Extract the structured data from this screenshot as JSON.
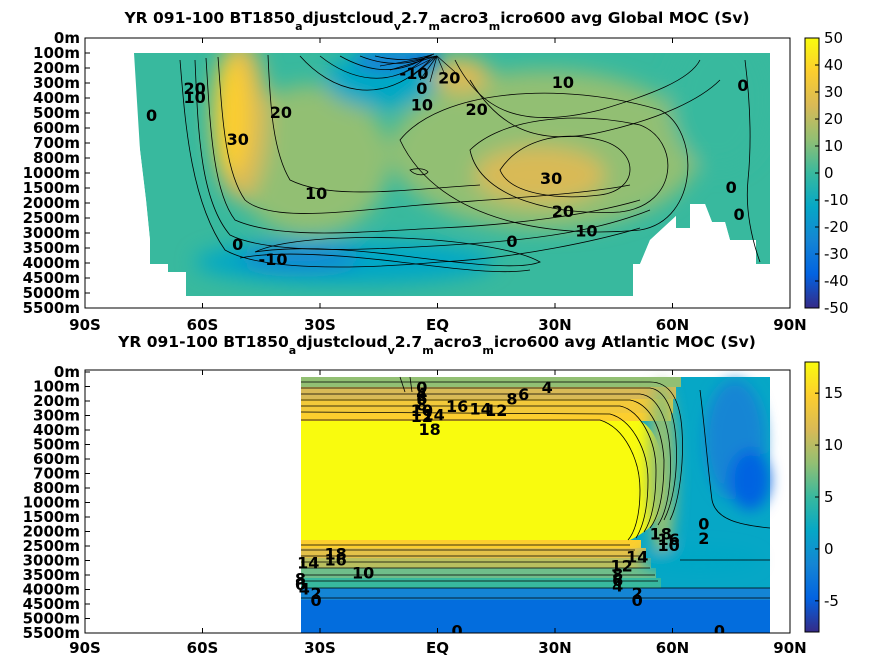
{
  "chart_data": [
    {
      "type": "heatmap",
      "title_main": "YR 091-100 BT1850",
      "title_parts": [
        {
          "text": "a",
          "sub": true
        },
        {
          "text": "djustcloud",
          "sub": false
        },
        {
          "text": "v",
          "sub": true
        },
        {
          "text": "2.7",
          "sub": false
        },
        {
          "text": "m",
          "sub": true
        },
        {
          "text": "acro3",
          "sub": false
        },
        {
          "text": "m",
          "sub": true
        },
        {
          "text": "icro600 avg  Global MOC (Sv)",
          "sub": false
        }
      ],
      "x_ticks": [
        -90,
        -60,
        -30,
        0,
        30,
        60,
        90
      ],
      "x_tick_labels": [
        "90S",
        "60S",
        "30S",
        "EQ",
        "30N",
        "60N",
        "90N"
      ],
      "y_tick_labels": [
        "0m",
        "100m",
        "200m",
        "300m",
        "400m",
        "500m",
        "600m",
        "700m",
        "800m",
        "1000m",
        "1500m",
        "2000m",
        "2500m",
        "3000m",
        "3500m",
        "4000m",
        "4500m",
        "5000m",
        "5500m"
      ],
      "colorbar": {
        "min": -50,
        "max": 50,
        "ticks": [
          50,
          40,
          30,
          20,
          10,
          0,
          -10,
          -20,
          -30,
          -40,
          -50
        ]
      },
      "xlim": [
        -90,
        90
      ],
      "contour_labels": [
        {
          "text": "-10",
          "lat": -6,
          "level": 2.4,
          "value": -10
        },
        {
          "text": "20",
          "lat": -62,
          "level": 3.4,
          "value": 20
        },
        {
          "text": "10",
          "lat": -62,
          "level": 4.0,
          "value": 10
        },
        {
          "text": "0",
          "lat": -73,
          "level": 5.2,
          "value": 0
        },
        {
          "text": "30",
          "lat": -51,
          "level": 6.8,
          "value": 30
        },
        {
          "text": "20",
          "lat": -40,
          "level": 5.0,
          "value": 20
        },
        {
          "text": "20",
          "lat": 3,
          "level": 2.7,
          "value": 20
        },
        {
          "text": "0",
          "lat": -4,
          "level": 3.4,
          "value": 0
        },
        {
          "text": "10",
          "lat": -4,
          "level": 4.5,
          "value": 10
        },
        {
          "text": "20",
          "lat": 10,
          "level": 4.8,
          "value": 20
        },
        {
          "text": "10",
          "lat": 32,
          "level": 3.0,
          "value": 10
        },
        {
          "text": "0",
          "lat": 78,
          "level": 3.2,
          "value": 0
        },
        {
          "text": "30",
          "lat": 29,
          "level": 9.4,
          "value": 30
        },
        {
          "text": "10",
          "lat": -31,
          "level": 10.4,
          "value": 10
        },
        {
          "text": "20",
          "lat": 32,
          "level": 11.6,
          "value": 20
        },
        {
          "text": "10",
          "lat": 38,
          "level": 12.9,
          "value": 10
        },
        {
          "text": "0",
          "lat": 75,
          "level": 10.0,
          "value": 0
        },
        {
          "text": "0",
          "lat": 77,
          "level": 11.8,
          "value": 0
        },
        {
          "text": "0",
          "lat": 19,
          "level": 13.6,
          "value": 0
        },
        {
          "text": "0",
          "lat": -51,
          "level": 13.8,
          "value": 0
        },
        {
          "text": "-10",
          "lat": -42,
          "level": 14.8,
          "value": -10
        }
      ]
    },
    {
      "type": "heatmap",
      "title_main": "YR 091-100 BT1850",
      "title_parts": [
        {
          "text": "a",
          "sub": true
        },
        {
          "text": "djustcloud",
          "sub": false
        },
        {
          "text": "v",
          "sub": true
        },
        {
          "text": "2.7",
          "sub": false
        },
        {
          "text": "m",
          "sub": true
        },
        {
          "text": "acro3",
          "sub": false
        },
        {
          "text": "m",
          "sub": true
        },
        {
          "text": "icro600 avg  Atlantic MOC (Sv)",
          "sub": false
        }
      ],
      "x_ticks": [
        -90,
        -60,
        -30,
        0,
        30,
        60,
        90
      ],
      "x_tick_labels": [
        "90S",
        "60S",
        "30S",
        "EQ",
        "30N",
        "60N",
        "90N"
      ],
      "y_tick_labels": [
        "0m",
        "100m",
        "200m",
        "300m",
        "400m",
        "500m",
        "600m",
        "700m",
        "800m",
        "1000m",
        "1500m",
        "2000m",
        "2500m",
        "3000m",
        "3500m",
        "4000m",
        "4500m",
        "5000m",
        "5500m"
      ],
      "colorbar": {
        "min": -8,
        "max": 18,
        "ticks": [
          15,
          10,
          5,
          0,
          -5
        ]
      },
      "xlim": [
        -90,
        90
      ],
      "contour_labels": [
        {
          "text": "0",
          "lat": -4,
          "level": 1.1,
          "value": 0
        },
        {
          "text": "4",
          "lat": -4,
          "level": 1.5,
          "value": 4
        },
        {
          "text": "6",
          "lat": -4,
          "level": 1.9,
          "value": 6
        },
        {
          "text": "8",
          "lat": -4,
          "level": 2.3,
          "value": 8
        },
        {
          "text": "10",
          "lat": -4,
          "level": 2.7,
          "value": 10
        },
        {
          "text": "12",
          "lat": -4,
          "level": 3.1,
          "value": 12
        },
        {
          "text": "14",
          "lat": -1,
          "level": 3.0,
          "value": 14
        },
        {
          "text": "16",
          "lat": 5,
          "level": 2.4,
          "value": 16
        },
        {
          "text": "14",
          "lat": 11,
          "level": 2.6,
          "value": 14
        },
        {
          "text": "12",
          "lat": 15,
          "level": 2.7,
          "value": 12
        },
        {
          "text": "8",
          "lat": 19,
          "level": 1.9,
          "value": 8
        },
        {
          "text": "6",
          "lat": 22,
          "level": 1.6,
          "value": 6
        },
        {
          "text": "4",
          "lat": 28,
          "level": 1.1,
          "value": 4
        },
        {
          "text": "18",
          "lat": -2,
          "level": 4.0,
          "value": 18
        },
        {
          "text": "0",
          "lat": 68,
          "level": 10.5,
          "value": 0
        },
        {
          "text": "2",
          "lat": 68,
          "level": 11.5,
          "value": 2
        },
        {
          "text": "18",
          "lat": 57,
          "level": 11.2,
          "value": 18
        },
        {
          "text": "16",
          "lat": 59,
          "level": 11.6,
          "value": 16
        },
        {
          "text": "10",
          "lat": 59,
          "level": 12.0,
          "value": 10
        },
        {
          "text": "18",
          "lat": -26,
          "level": 12.6,
          "value": 18
        },
        {
          "text": "16",
          "lat": -26,
          "level": 13.0,
          "value": 16
        },
        {
          "text": "14",
          "lat": -33,
          "level": 13.2,
          "value": 14
        },
        {
          "text": "10",
          "lat": -19,
          "level": 13.9,
          "value": 10
        },
        {
          "text": "8",
          "lat": -35,
          "level": 14.3,
          "value": 8
        },
        {
          "text": "6",
          "lat": -35,
          "level": 14.7,
          "value": 6
        },
        {
          "text": "4",
          "lat": -34,
          "level": 15.0,
          "value": 4
        },
        {
          "text": "2",
          "lat": -31,
          "level": 15.3,
          "value": 2
        },
        {
          "text": "0",
          "lat": -31,
          "level": 15.8,
          "value": 0
        },
        {
          "text": "14",
          "lat": 51,
          "level": 12.8,
          "value": 14
        },
        {
          "text": "12",
          "lat": 47,
          "level": 13.4,
          "value": 12
        },
        {
          "text": "8",
          "lat": 46,
          "level": 14.0,
          "value": 8
        },
        {
          "text": "6",
          "lat": 46,
          "level": 14.4,
          "value": 6
        },
        {
          "text": "4",
          "lat": 46,
          "level": 14.8,
          "value": 4
        },
        {
          "text": "2",
          "lat": 51,
          "level": 15.3,
          "value": 2
        },
        {
          "text": "0",
          "lat": 51,
          "level": 15.8,
          "value": 0
        },
        {
          "text": "0",
          "lat": 5,
          "level": 17.9,
          "value": 0
        },
        {
          "text": "0",
          "lat": 72,
          "level": 17.9,
          "value": 0
        }
      ]
    }
  ]
}
